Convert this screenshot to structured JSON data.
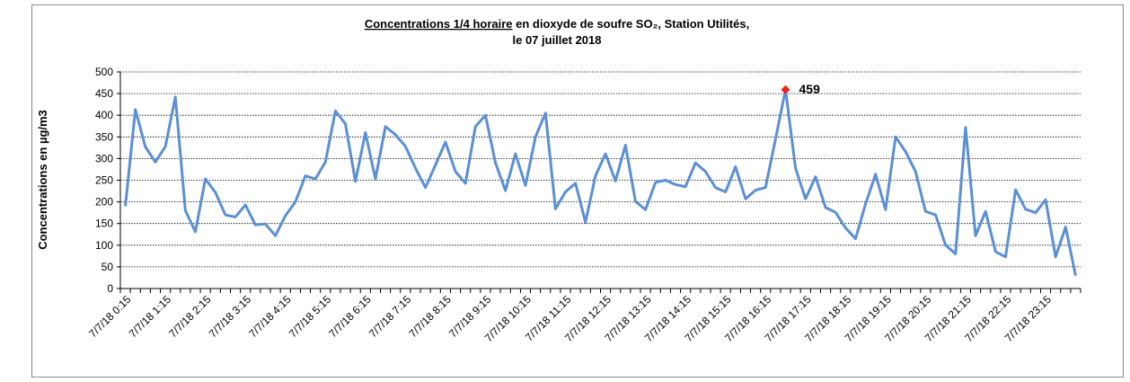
{
  "chart_data": {
    "type": "line",
    "title": [
      "Concentrations 1/4 horaire",
      " en dioxyde de soufre SO₂, Station Utilités,",
      "le 07 juillet 2018"
    ],
    "y_label": "Concentrations en µg/m3",
    "categories": [
      "7/7/18 0:15",
      null,
      null,
      null,
      "7/7/18 1:15",
      null,
      null,
      null,
      "7/7/18 2:15",
      null,
      null,
      null,
      "7/7/18 3:15",
      null,
      null,
      null,
      "7/7/18 4:15",
      null,
      null,
      null,
      "7/7/18 5:15",
      null,
      null,
      null,
      "7/7/18 6:15",
      null,
      null,
      null,
      "7/7/18 7:15",
      null,
      null,
      null,
      "7/7/18 8:15",
      null,
      null,
      null,
      "7/7/18 9:15",
      null,
      null,
      null,
      "7/7/18 10:15",
      null,
      null,
      null,
      "7/7/18 11:15",
      null,
      null,
      null,
      "7/7/18 12:15",
      null,
      null,
      null,
      "7/7/18 13:15",
      null,
      null,
      null,
      "7/7/18 14:15",
      null,
      null,
      null,
      "7/7/18 15:15",
      null,
      null,
      null,
      "7/7/18 16:15",
      null,
      null,
      null,
      "7/7/18 17:15",
      null,
      null,
      null,
      "7/7/18 18:15",
      null,
      null,
      null,
      "7/7/18 19:15",
      null,
      null,
      null,
      "7/7/18 20:15",
      null,
      null,
      null,
      "7/7/18 21:15",
      null,
      null,
      null,
      "7/7/18 22:15",
      null,
      null,
      null,
      "7/7/18 23:15",
      null,
      null,
      null
    ],
    "series": [
      {
        "color": "#5b8fd6",
        "values": [
          190,
          413,
          327,
          292,
          328,
          442,
          180,
          131,
          253,
          222,
          170,
          165,
          193,
          147,
          149,
          122,
          168,
          200,
          260,
          253,
          292,
          410,
          380,
          247,
          360,
          253,
          374,
          355,
          328,
          278,
          233,
          285,
          338,
          270,
          243,
          374,
          400,
          290,
          226,
          311,
          238,
          350,
          405,
          184,
          223,
          243,
          153,
          260,
          311,
          248,
          331,
          201,
          182,
          245,
          250,
          240,
          235,
          290,
          270,
          233,
          223,
          281,
          207,
          227,
          233,
          345,
          459,
          278,
          207,
          258,
          187,
          176,
          140,
          115,
          195,
          264,
          182,
          350,
          316,
          270,
          178,
          170,
          100,
          80,
          372,
          122,
          178,
          85,
          73,
          228,
          183,
          175,
          205,
          73,
          142,
          30
        ],
        "value_labels": [
          null,
          null,
          null,
          null,
          null,
          null,
          null,
          null,
          null,
          null,
          null,
          null,
          null,
          null,
          null,
          null,
          null,
          null,
          null,
          null,
          null,
          null,
          null,
          null,
          null,
          null,
          null,
          null,
          null,
          null,
          null,
          null,
          null,
          null,
          null,
          null,
          null,
          null,
          null,
          null,
          null,
          null,
          null,
          null,
          null,
          null,
          null,
          null,
          null,
          null,
          null,
          null,
          null,
          null,
          null,
          null,
          null,
          null,
          null,
          null,
          null,
          null,
          null,
          null,
          null,
          null,
          "459",
          null,
          null,
          null,
          null,
          null,
          null,
          null,
          null,
          null,
          null,
          null,
          null,
          null,
          null,
          null,
          null,
          null,
          null,
          null,
          null,
          null,
          null,
          null,
          null,
          null,
          null,
          null,
          null,
          null
        ],
        "label_color": "#e8221e"
      }
    ],
    "ylim": [
      0,
      500
    ],
    "yticks": [
      0,
      50,
      100,
      150,
      200,
      250,
      300,
      350,
      400,
      450,
      500
    ],
    "grid": true
  }
}
